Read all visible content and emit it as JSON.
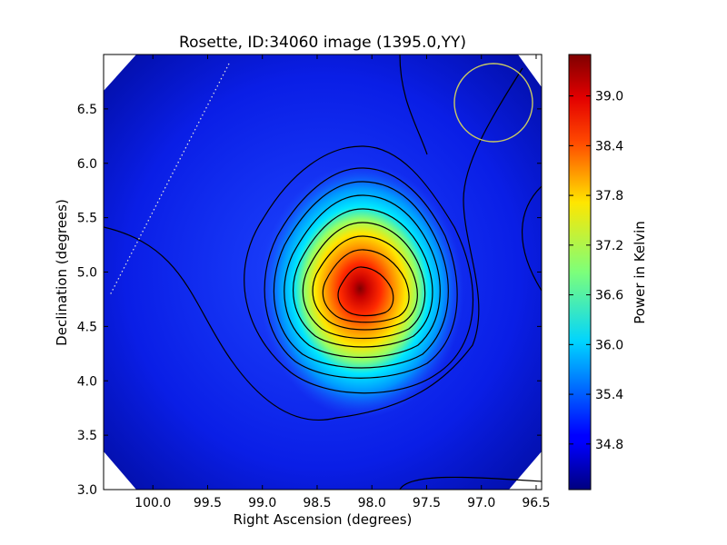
{
  "chart_data": {
    "type": "heatmap",
    "title": "Rosette, ID:34060 image (1395.0,YY)",
    "xlabel": "Right Ascension (degrees)",
    "ylabel": "Declination (degrees)",
    "xlim": [
      100.45,
      96.45
    ],
    "ylim": [
      3.0,
      7.0
    ],
    "x_ticks": [
      100.0,
      99.5,
      99.0,
      98.5,
      98.0,
      97.5,
      97.0,
      96.5
    ],
    "x_tick_labels": [
      "100.0",
      "99.5",
      "99.0",
      "98.5",
      "98.0",
      "97.5",
      "97.0",
      "96.5"
    ],
    "y_ticks": [
      3.0,
      3.5,
      4.0,
      4.5,
      5.0,
      5.5,
      6.0,
      6.5
    ],
    "y_tick_labels": [
      "3.0",
      "3.5",
      "4.0",
      "4.5",
      "5.0",
      "5.5",
      "6.0",
      "6.5"
    ],
    "colormap": "jet",
    "colorbar": {
      "label": "Power in Kelvin",
      "range": [
        34.25,
        39.5
      ],
      "ticks": [
        34.8,
        35.4,
        36.0,
        36.6,
        37.2,
        37.8,
        38.4,
        39.0
      ],
      "tick_labels": [
        "34.8",
        "35.4",
        "36.0",
        "36.6",
        "37.2",
        "37.8",
        "38.4",
        "39.0"
      ]
    },
    "peak": {
      "ra": 98.1,
      "dec": 4.8,
      "value": 39.4
    },
    "background_level": 34.6,
    "beam_circle": {
      "ra": 96.87,
      "dec": 6.55,
      "radius_deg": 0.36,
      "color": "#c8c864"
    },
    "dotted_line": {
      "from": {
        "ra": 99.4,
        "dec": 6.9
      },
      "to": {
        "ra": 100.15,
        "dec": 4.78
      }
    },
    "contours": "solid black contour lines at regular intervals",
    "grid": false
  }
}
